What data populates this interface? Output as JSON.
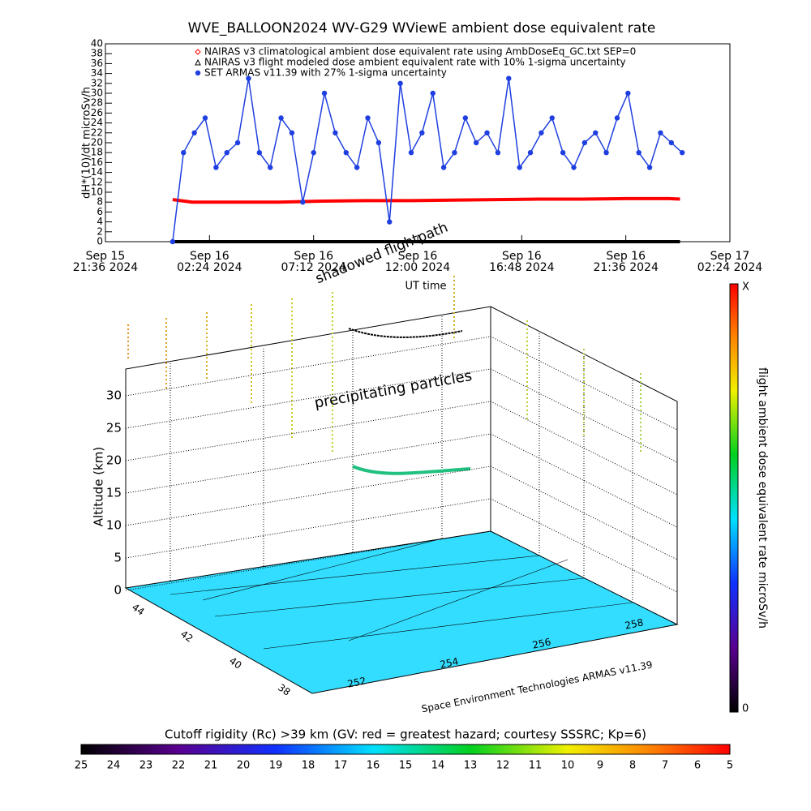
{
  "chart_data": {
    "type": "line",
    "title": "WVE_BALLOON2024 WV-G29 WViewE ambient dose equivalent rate",
    "y_label": "dH*(10)/dt microSv/h",
    "x_label": "UT time",
    "xlim": [
      0,
      28.8
    ],
    "xticks": [
      {
        "value": 0,
        "label": [
          "Sep 15",
          "21:36 2024"
        ]
      },
      {
        "value": 4.8,
        "label": [
          "Sep 16",
          "02:24 2024"
        ]
      },
      {
        "value": 9.6,
        "label": [
          "Sep 16",
          "07:12 2024"
        ]
      },
      {
        "value": 14.4,
        "label": [
          "Sep 16",
          "12:00 2024"
        ]
      },
      {
        "value": 19.2,
        "label": [
          "Sep 16",
          "16:48 2024"
        ]
      },
      {
        "value": 24,
        "label": [
          "Sep 16",
          "21:36 2024"
        ]
      },
      {
        "value": 28.8,
        "label": [
          "Sep 17",
          "02:24 2024"
        ]
      }
    ],
    "ylim": [
      0,
      40
    ],
    "yticks": [
      0,
      2,
      4,
      6,
      8,
      10,
      12,
      14,
      16,
      18,
      20,
      22,
      24,
      26,
      28,
      30,
      32,
      34,
      36,
      38,
      40
    ],
    "series": [
      {
        "name": "NAIRAS v3 climatological ambient dose equivalent rate using AmbDoseEq_GC.txt SEP=0",
        "color": "#ff0000",
        "marker": "diamond",
        "x": [
          3.1,
          4,
          6,
          8,
          10,
          12,
          14,
          16,
          18,
          20,
          22,
          24,
          26,
          26.5
        ],
        "values": [
          8.5,
          8,
          8,
          8,
          8.2,
          8.3,
          8.3,
          8.4,
          8.5,
          8.6,
          8.6,
          8.7,
          8.7,
          8.6
        ]
      },
      {
        "name": "NAIRAS v3 flight modeled dose ambient equivalent rate with 10% 1-sigma uncertainty",
        "color": "#000000",
        "marker": "triangle",
        "x": [
          3.1,
          26.5
        ],
        "values": [
          0,
          0
        ]
      },
      {
        "name": "SET ARMAS v11.39 with 27% 1-sigma uncertainty",
        "color": "#1f3fe0",
        "marker": "circle",
        "x": [
          3.1,
          3.6,
          4.1,
          4.6,
          5.1,
          5.6,
          6.1,
          6.6,
          7.1,
          7.6,
          8.1,
          8.6,
          9.1,
          9.6,
          10.1,
          10.6,
          11.1,
          11.6,
          12.1,
          12.6,
          13.1,
          13.6,
          14.1,
          14.6,
          15.1,
          15.6,
          16.1,
          16.6,
          17.1,
          17.6,
          18.1,
          18.6,
          19.1,
          19.6,
          20.1,
          20.6,
          21.1,
          21.6,
          22.1,
          22.6,
          23.1,
          23.6,
          24.1,
          24.6,
          25.1,
          25.6,
          26.1,
          26.6
        ],
        "values": [
          0,
          18,
          22,
          25,
          15,
          18,
          20,
          33,
          18,
          15,
          25,
          22,
          8,
          18,
          30,
          22,
          18,
          15,
          25,
          20,
          4,
          32,
          18,
          22,
          30,
          15,
          18,
          25,
          20,
          22,
          18,
          33,
          15,
          18,
          22,
          25,
          18,
          15,
          20,
          22,
          18,
          25,
          30,
          18,
          15,
          22,
          20,
          18
        ]
      }
    ]
  },
  "scene": {
    "z_label": "Altitude (km)",
    "zticks": [
      0,
      5,
      10,
      15,
      20,
      25,
      30
    ],
    "lat_ticks": [
      44,
      42,
      40,
      38
    ],
    "lon_ticks": [
      252,
      254,
      256,
      258
    ],
    "annotation_particles": "precipitating particles",
    "annotation_shadow": "shadowed flightpath",
    "credit": "Space Environment Technologies ARMAS v11.39",
    "colorbar_label": "flight ambient dose equivalent rate microSv/h",
    "colorbar_top": "X",
    "colorbar_bottom": 0,
    "rigidity_title": "Cutoff rigidity (Rc) >39 km (GV: red = greatest hazard; courtesy SSSRC; Kp=6)",
    "rigidity_ticks": [
      25,
      24,
      23,
      22,
      21,
      20,
      19,
      18,
      17,
      16,
      15,
      14,
      13,
      12,
      11,
      10,
      9,
      8,
      7,
      6,
      5
    ]
  }
}
